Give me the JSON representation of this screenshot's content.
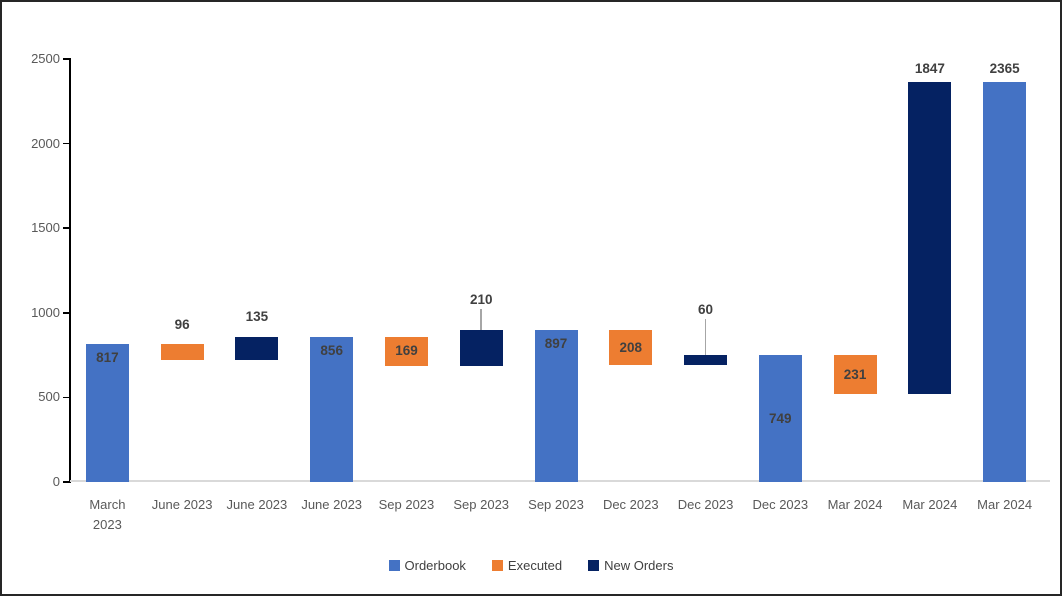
{
  "chart_data": {
    "type": "bar",
    "subtype": "waterfall",
    "title": "",
    "grid": "off",
    "legend": {
      "position": "bottom",
      "items": [
        {
          "label": "Orderbook",
          "color": "#4472C4"
        },
        {
          "label": "Executed",
          "color": "#ED7D31"
        },
        {
          "label": "New Orders",
          "color": "#052262"
        }
      ]
    },
    "y_axis": {
      "min": 0,
      "max": 2500,
      "ticks": [
        0,
        500,
        1000,
        1500,
        2000,
        2500
      ]
    },
    "x_axis": {
      "categories": [
        "March 2023",
        "June 2023",
        "June 2023",
        "June 2023",
        "Sep 2023",
        "Sep 2023",
        "Sep 2023",
        "Dec 2023",
        "Dec 2023",
        "Dec 2023",
        "Mar 2024",
        "Mar 2024",
        "Mar 2024"
      ]
    },
    "bars": [
      {
        "category": "March 2023",
        "category_lines": [
          "March",
          "2023"
        ],
        "series": "Orderbook",
        "value": 817,
        "base": 0,
        "label": "817",
        "label_pos": "inside-top"
      },
      {
        "category": "June 2023",
        "category_lines": [
          "June 2023"
        ],
        "series": "Executed",
        "value": 96,
        "base": 721,
        "label": "96",
        "label_pos": "above",
        "label_offset": 19
      },
      {
        "category": "June 2023",
        "category_lines": [
          "June 2023"
        ],
        "series": "New Orders",
        "value": 135,
        "base": 721,
        "label": "135",
        "label_pos": "above",
        "label_offset": 20
      },
      {
        "category": "June 2023",
        "category_lines": [
          "June 2023"
        ],
        "series": "Orderbook",
        "value": 856,
        "base": 0,
        "label": "856",
        "label_pos": "inside-top"
      },
      {
        "category": "Sep 2023",
        "category_lines": [
          "Sep 2023"
        ],
        "series": "Executed",
        "value": 169,
        "base": 687,
        "label": "169",
        "label_pos": "inside-center"
      },
      {
        "category": "Sep 2023",
        "category_lines": [
          "Sep 2023"
        ],
        "series": "New Orders",
        "value": 210,
        "base": 687,
        "label": "210",
        "label_pos": "above-leader",
        "label_offset": 30
      },
      {
        "category": "Sep 2023",
        "category_lines": [
          "Sep 2023"
        ],
        "series": "Orderbook",
        "value": 897,
        "base": 0,
        "label": "897",
        "label_pos": "inside-top"
      },
      {
        "category": "Dec 2023",
        "category_lines": [
          "Dec 2023"
        ],
        "series": "Executed",
        "value": 208,
        "base": 689,
        "label": "208",
        "label_pos": "inside-center"
      },
      {
        "category": "Dec 2023",
        "category_lines": [
          "Dec 2023"
        ],
        "series": "New Orders",
        "value": 60,
        "base": 689,
        "label": "60",
        "label_pos": "above-leader",
        "label_offset": 45
      },
      {
        "category": "Dec 2023",
        "category_lines": [
          "Dec 2023"
        ],
        "series": "Orderbook",
        "value": 749,
        "base": 0,
        "label": "749",
        "label_pos": "inside-center"
      },
      {
        "category": "Mar 2024",
        "category_lines": [
          "Mar 2024"
        ],
        "series": "Executed",
        "value": 231,
        "base": 518,
        "label": "231",
        "label_pos": "inside-center"
      },
      {
        "category": "Mar 2024",
        "category_lines": [
          "Mar 2024"
        ],
        "series": "New Orders",
        "value": 1847,
        "base": 518,
        "label": "1847",
        "label_pos": "above",
        "label_offset": 13
      },
      {
        "category": "Mar 2024",
        "category_lines": [
          "Mar 2024"
        ],
        "series": "Orderbook",
        "value": 2365,
        "base": 0,
        "label": "2365",
        "label_pos": "above",
        "label_offset": 13
      }
    ],
    "colors": {
      "Orderbook": "#4472C4",
      "Executed": "#ED7D31",
      "New Orders": "#052262"
    },
    "label_color": "#404040",
    "axis_text_color": "#595959",
    "leader_line_color": "#A6A6A6",
    "baseline_color": "#D9D9D9"
  }
}
